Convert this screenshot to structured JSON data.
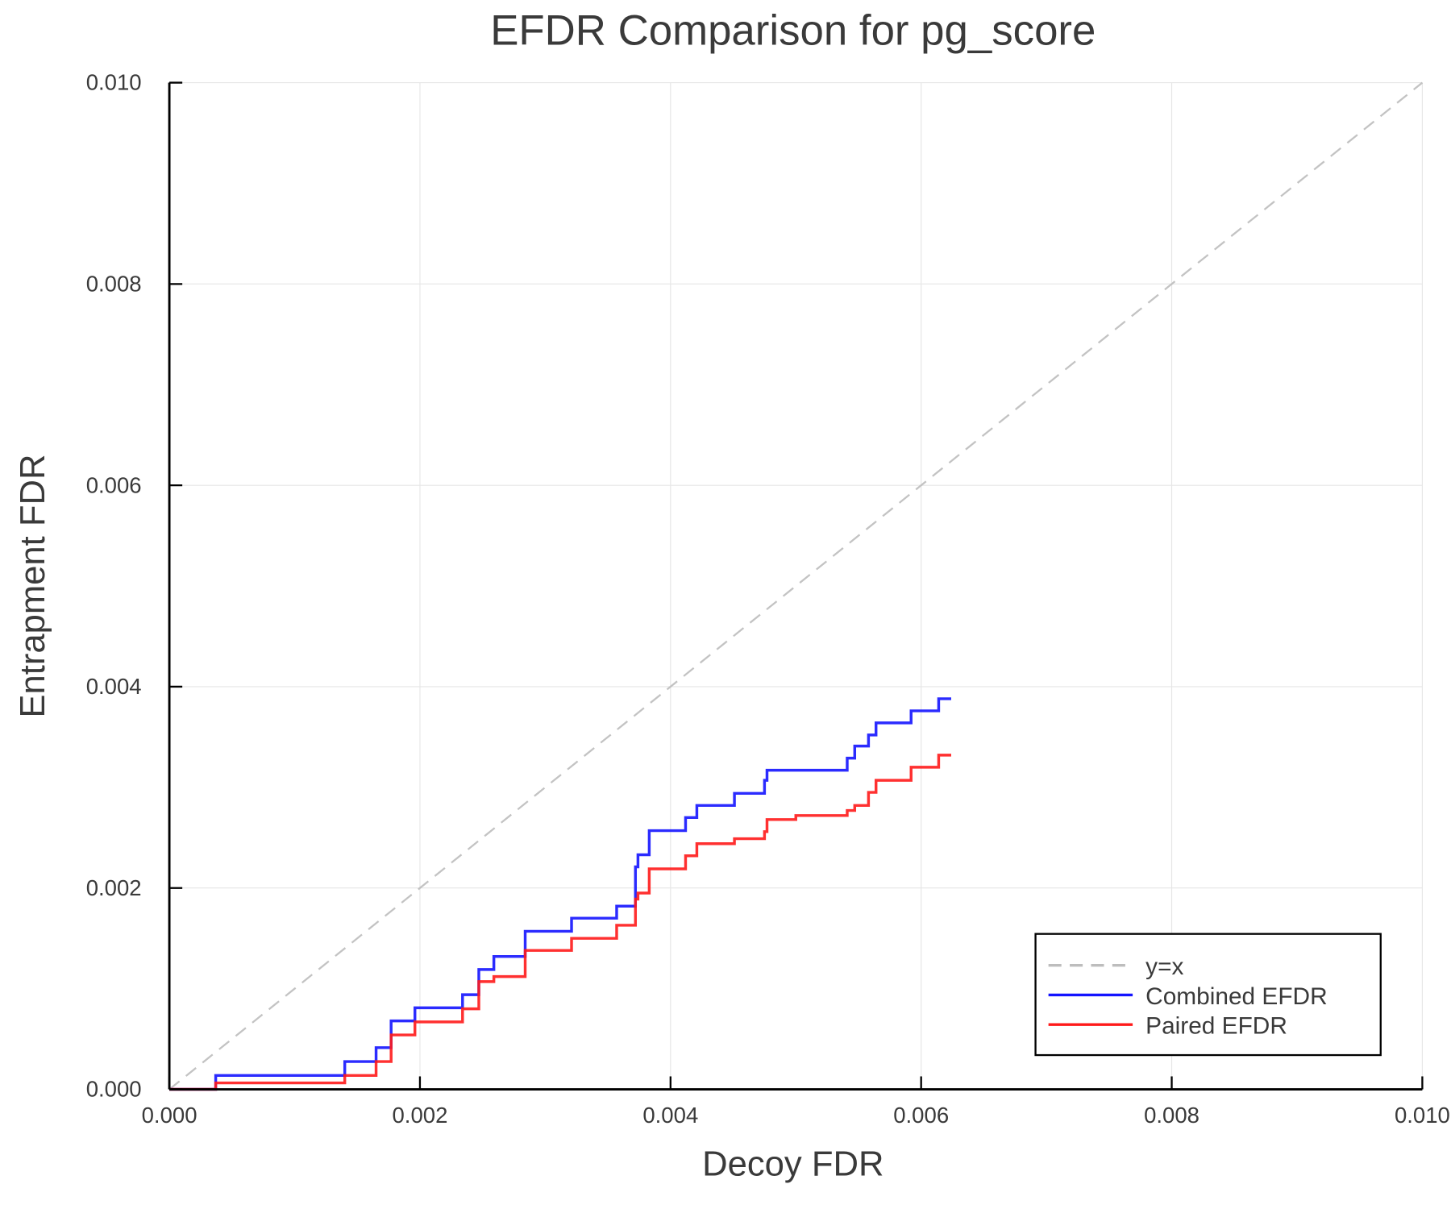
{
  "chart_data": {
    "type": "line",
    "title": "EFDR Comparison for pg_score",
    "xlabel": "Decoy FDR",
    "ylabel": "Entrapment FDR",
    "xlim": [
      0,
      0.01
    ],
    "ylim": [
      0,
      0.01
    ],
    "xticks": [
      "0.000",
      "0.002",
      "0.004",
      "0.006",
      "0.008",
      "0.010"
    ],
    "yticks": [
      "0.000",
      "0.002",
      "0.004",
      "0.006",
      "0.008",
      "0.010"
    ],
    "grid": true,
    "legend_position": "bottom-right",
    "series": [
      {
        "name": "y=x",
        "color": "#bdbdbd",
        "style": "dashed",
        "x": [
          0,
          0.01
        ],
        "y": [
          0,
          0.01
        ]
      },
      {
        "name": "Combined EFDR",
        "color": "#1414ff",
        "style": "step",
        "x": [
          0,
          0.00037,
          0.0014,
          0.00165,
          0.00177,
          0.00196,
          0.00234,
          0.00247,
          0.00259,
          0.00284,
          0.00321,
          0.00357,
          0.00372,
          0.00374,
          0.00383,
          0.00412,
          0.00421,
          0.00451,
          0.00475,
          0.00477,
          0.00541,
          0.00547,
          0.00558,
          0.00564,
          0.00592,
          0.00614,
          0.00624
        ],
        "y": [
          0,
          0.000138,
          0.000276,
          0.000414,
          0.00068,
          0.00081,
          0.00094,
          0.00119,
          0.00132,
          0.00157,
          0.0017,
          0.00182,
          0.00221,
          0.00233,
          0.00257,
          0.0027,
          0.00282,
          0.00294,
          0.00307,
          0.00317,
          0.00329,
          0.00341,
          0.00352,
          0.00364,
          0.00376,
          0.00388,
          0.00388
        ]
      },
      {
        "name": "Paired EFDR",
        "color": "#ff1a1a",
        "style": "step",
        "x": [
          0,
          0.00037,
          0.0014,
          0.00165,
          0.00177,
          0.00196,
          0.00234,
          0.00247,
          0.00259,
          0.00284,
          0.00321,
          0.00357,
          0.00372,
          0.00374,
          0.00383,
          0.00412,
          0.00421,
          0.00451,
          0.00475,
          0.00477,
          0.005,
          0.00541,
          0.00547,
          0.00558,
          0.00564,
          0.00592,
          0.00614,
          0.00624
        ],
        "y": [
          0,
          6.4e-05,
          0.000138,
          0.000276,
          0.00054,
          0.00067,
          0.0008,
          0.00107,
          0.00112,
          0.00138,
          0.0015,
          0.00163,
          0.00189,
          0.00195,
          0.00219,
          0.00232,
          0.00244,
          0.00249,
          0.00256,
          0.00268,
          0.00272,
          0.00277,
          0.00282,
          0.00295,
          0.00307,
          0.0032,
          0.00332,
          0.00332
        ]
      }
    ]
  }
}
